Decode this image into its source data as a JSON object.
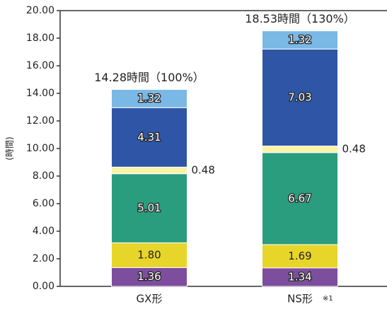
{
  "chart_data": {
    "type": "stacked_bar",
    "y_label": "(時間)",
    "categories": [
      "GX形",
      "NS形"
    ],
    "category_notes": [
      null,
      "※1"
    ],
    "total_labels": [
      "14.28時間（100%）",
      "18.53時間（130%）"
    ],
    "series": [
      {
        "color": "#7d4e9e",
        "values": [
          1.36,
          1.34
        ],
        "value_labels": [
          "1.36",
          "1.34"
        ]
      },
      {
        "color": "#e8d52a",
        "values": [
          1.8,
          1.69
        ],
        "value_labels": [
          "1.80",
          "1.69"
        ]
      },
      {
        "color": "#2a9d7f",
        "values": [
          5.01,
          6.67
        ],
        "value_labels": [
          "5.01",
          "6.67"
        ]
      },
      {
        "color": "#fbf3a8",
        "values": [
          0.48,
          0.48
        ],
        "value_labels": [
          "0.48",
          "0.48"
        ]
      },
      {
        "color": "#2f56a6",
        "values": [
          4.31,
          7.03
        ],
        "value_labels": [
          "4.31",
          "7.03"
        ]
      },
      {
        "color": "#7ab8e6",
        "values": [
          1.32,
          1.32
        ],
        "value_labels": [
          "1.32",
          "1.32"
        ]
      }
    ],
    "ylim": [
      0,
      20
    ],
    "yticks": [
      {
        "value": 0,
        "label": "0.00"
      },
      {
        "value": 2,
        "label": "2.00"
      },
      {
        "value": 4,
        "label": "4.00"
      },
      {
        "value": 6,
        "label": "6.00"
      },
      {
        "value": 8,
        "label": "8.00"
      },
      {
        "value": 10,
        "label": "10.00"
      },
      {
        "value": 12,
        "label": "12.00"
      },
      {
        "value": 14,
        "label": "14.00"
      },
      {
        "value": 16,
        "label": "16.00"
      },
      {
        "value": 18,
        "label": "18.00"
      },
      {
        "value": 20,
        "label": "20.00"
      }
    ]
  }
}
